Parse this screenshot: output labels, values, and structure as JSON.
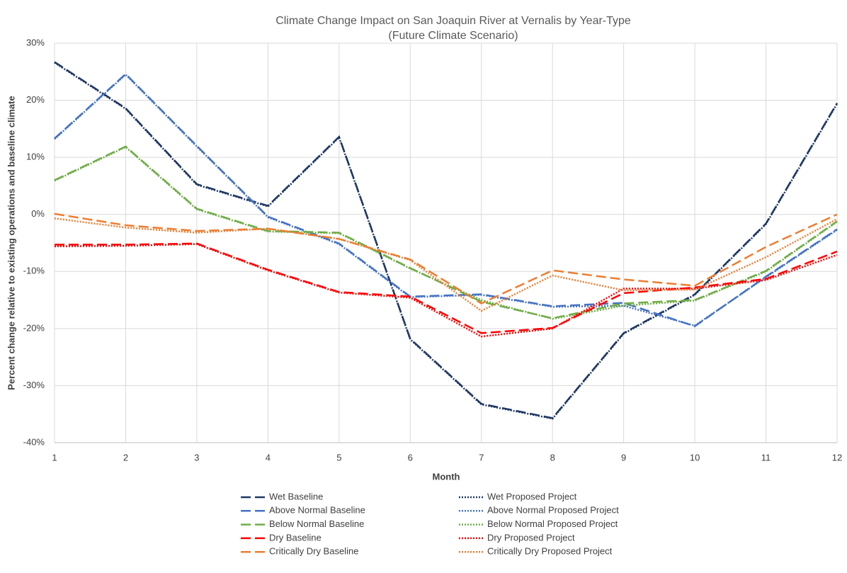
{
  "chart_data": {
    "type": "line",
    "title": "Climate Change Impact on San Joaquin River at Vernalis by Year-Type",
    "subtitle": "(Future Climate Scenario)",
    "x_label": "Month",
    "y_label": "Percent change relative to existing operations and baseline climate",
    "x": [
      1,
      2,
      3,
      4,
      5,
      6,
      7,
      8,
      9,
      10,
      11,
      12
    ],
    "xlim": [
      1,
      12
    ],
    "xticks": [
      1,
      2,
      3,
      4,
      5,
      6,
      7,
      8,
      9,
      10,
      11,
      12
    ],
    "ylim": [
      -40,
      30
    ],
    "yticks": [
      {
        "value": -40,
        "label": "-40%"
      },
      {
        "value": -30,
        "label": "-30%"
      },
      {
        "value": -20,
        "label": "-20%"
      },
      {
        "value": -10,
        "label": "-10%"
      },
      {
        "value": 0,
        "label": "0%"
      },
      {
        "value": 10,
        "label": "10%"
      },
      {
        "value": 20,
        "label": "20%"
      },
      {
        "value": 30,
        "label": "30%"
      }
    ],
    "grid": true,
    "legend": "bottom",
    "series": [
      {
        "name": "Wet Baseline",
        "color": "#1f3864",
        "dash": "long-dash",
        "values": [
          26.7,
          18.6,
          5.3,
          1.5,
          13.6,
          -21.8,
          -33.2,
          -35.7,
          -20.8,
          -14.0,
          -1.6,
          19.5
        ]
      },
      {
        "name": "Wet Proposed Project",
        "color": "#1f3864",
        "dash": "dot",
        "values": [
          26.6,
          18.5,
          5.2,
          1.4,
          13.5,
          -21.9,
          -33.3,
          -35.8,
          -20.9,
          -14.1,
          -1.7,
          19.4
        ]
      },
      {
        "name": "Above Normal Baseline",
        "color": "#4472c4",
        "dash": "long-dash",
        "values": [
          13.3,
          24.6,
          12.0,
          -0.4,
          -5.1,
          -14.4,
          -14.0,
          -16.1,
          -15.5,
          -19.6,
          -10.9,
          -2.6
        ]
      },
      {
        "name": "Above Normal Proposed Project",
        "color": "#4472c4",
        "dash": "dot",
        "values": [
          13.2,
          24.5,
          11.9,
          -0.5,
          -5.2,
          -14.5,
          -14.1,
          -16.2,
          -16.0,
          -19.5,
          -11.0,
          -2.7
        ]
      },
      {
        "name": "Below Normal Baseline",
        "color": "#70ad47",
        "dash": "long-dash",
        "values": [
          6.0,
          11.9,
          1.0,
          -2.9,
          -3.2,
          -9.4,
          -15.3,
          -18.2,
          -15.6,
          -15.0,
          -9.9,
          -1.2
        ]
      },
      {
        "name": "Below Normal Proposed Project",
        "color": "#70ad47",
        "dash": "dot",
        "values": [
          5.9,
          11.8,
          0.9,
          -3.0,
          -3.3,
          -9.5,
          -15.0,
          -18.3,
          -16.0,
          -15.1,
          -10.0,
          -1.3
        ]
      },
      {
        "name": "Dry Baseline",
        "color": "#ff0000",
        "dash": "long-dash",
        "values": [
          -5.3,
          -5.3,
          -5.1,
          -9.7,
          -13.6,
          -14.4,
          -20.8,
          -19.9,
          -13.8,
          -12.8,
          -11.3,
          -6.5
        ]
      },
      {
        "name": "Dry Proposed Project",
        "color": "#ff0000",
        "dash": "dot",
        "values": [
          -5.6,
          -5.5,
          -5.2,
          -9.8,
          -13.7,
          -14.6,
          -21.4,
          -20.0,
          -13.0,
          -13.0,
          -11.5,
          -7.1
        ]
      },
      {
        "name": "Critically Dry Baseline",
        "color": "#ed7d31",
        "dash": "long-dash",
        "values": [
          0.1,
          -1.9,
          -2.9,
          -2.5,
          -4.3,
          -7.9,
          -15.6,
          -9.8,
          -11.4,
          -12.5,
          -5.7,
          0.0
        ]
      },
      {
        "name": "Critically Dry Proposed Project",
        "color": "#ed7d31",
        "dash": "dot",
        "values": [
          -0.7,
          -2.3,
          -3.2,
          -2.5,
          -4.3,
          -8.0,
          -16.9,
          -10.7,
          -13.3,
          -13.2,
          -7.5,
          -0.8
        ]
      }
    ]
  }
}
